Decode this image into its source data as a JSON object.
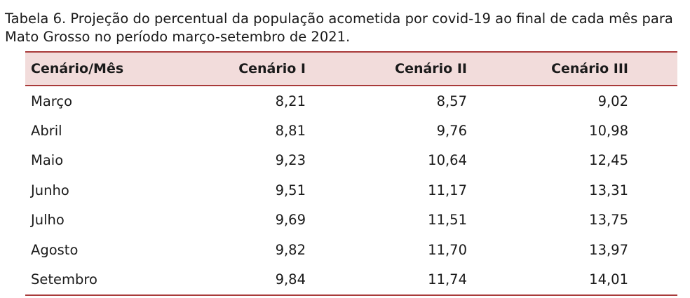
{
  "caption": {
    "line1": "Tabela 6. Projeção do percentual da população acometida por covid-19 ao final de cada mês para",
    "line2": "Mato Grosso no período março-setembro de 2021."
  },
  "table": {
    "headers": [
      "Cenário/Mês",
      "Cenário I",
      "Cenário II",
      "Cenário III"
    ],
    "rows": [
      {
        "month": "Março",
        "c1": "8,21",
        "c2": "8,57",
        "c3": "9,02"
      },
      {
        "month": "Abril",
        "c1": "8,81",
        "c2": "9,76",
        "c3": "10,98"
      },
      {
        "month": "Maio",
        "c1": "9,23",
        "c2": "10,64",
        "c3": "12,45"
      },
      {
        "month": "Junho",
        "c1": "9,51",
        "c2": "11,17",
        "c3": "13,31"
      },
      {
        "month": "Julho",
        "c1": "9,69",
        "c2": "11,51",
        "c3": "13,75"
      },
      {
        "month": "Agosto",
        "c1": "9,82",
        "c2": "11,70",
        "c3": "13,97"
      },
      {
        "month": "Setembro",
        "c1": "9,84",
        "c2": "11,74",
        "c3": "14,01"
      }
    ]
  },
  "colors": {
    "header_bg": "#f2dcdb",
    "rule": "#a93a3a"
  }
}
